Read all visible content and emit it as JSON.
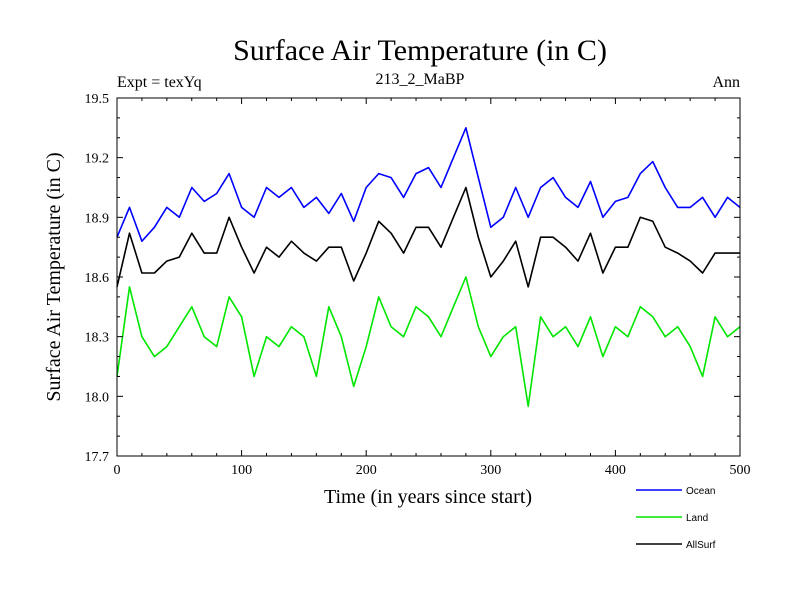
{
  "chart_data": {
    "type": "line",
    "title": "Surface Air Temperature (in C)",
    "subtitle": "213_2_MaBP",
    "left_label": "Expt = texYq",
    "right_label": "Ann",
    "xlabel": "Time (in years since start)",
    "ylabel": "Surface Air Temperature (in C)",
    "xlim": [
      0,
      500
    ],
    "ylim": [
      17.7,
      19.5
    ],
    "xticks": [
      0,
      100,
      200,
      300,
      400,
      500
    ],
    "yticks": [
      17.7,
      18.0,
      18.3,
      18.6,
      18.9,
      19.2,
      19.5
    ],
    "ytick_labels": [
      "17.7",
      "18.0",
      "18.3",
      "18.6",
      "18.9",
      "19.2",
      "19.5"
    ],
    "grid": false,
    "legend_position": "bottom-right, below plot",
    "x": [
      0,
      10,
      20,
      30,
      40,
      50,
      60,
      70,
      80,
      90,
      100,
      110,
      120,
      130,
      140,
      150,
      160,
      170,
      180,
      190,
      200,
      210,
      220,
      230,
      240,
      250,
      260,
      270,
      280,
      290,
      300,
      310,
      320,
      330,
      340,
      350,
      360,
      370,
      380,
      390,
      400,
      410,
      420,
      430,
      440,
      450,
      460,
      470,
      480,
      490,
      500
    ],
    "series": [
      {
        "name": "Ocean",
        "color": "#0000ff",
        "values": [
          18.8,
          18.95,
          18.78,
          18.85,
          18.95,
          18.9,
          19.05,
          18.98,
          19.02,
          19.12,
          18.95,
          18.9,
          19.05,
          19.0,
          19.05,
          18.95,
          19.0,
          18.92,
          19.02,
          18.88,
          19.05,
          19.12,
          19.1,
          19.0,
          19.12,
          19.15,
          19.05,
          19.2,
          19.35,
          19.1,
          18.85,
          18.9,
          19.05,
          18.9,
          19.05,
          19.1,
          19.0,
          18.95,
          19.08,
          18.9,
          18.98,
          19.0,
          19.12,
          19.18,
          19.05,
          18.95,
          18.95,
          19.0,
          18.9,
          19.0,
          18.95
        ]
      },
      {
        "name": "Land",
        "color": "#00e600",
        "values": [
          18.1,
          18.55,
          18.3,
          18.2,
          18.25,
          18.35,
          18.45,
          18.3,
          18.25,
          18.5,
          18.4,
          18.1,
          18.3,
          18.25,
          18.35,
          18.3,
          18.1,
          18.45,
          18.3,
          18.05,
          18.25,
          18.5,
          18.35,
          18.3,
          18.45,
          18.4,
          18.3,
          18.45,
          18.6,
          18.35,
          18.2,
          18.3,
          18.35,
          17.95,
          18.4,
          18.3,
          18.35,
          18.25,
          18.4,
          18.2,
          18.35,
          18.3,
          18.45,
          18.4,
          18.3,
          18.35,
          18.25,
          18.1,
          18.4,
          18.3,
          18.35
        ]
      },
      {
        "name": "AllSurf",
        "color": "#000000",
        "values": [
          18.55,
          18.82,
          18.62,
          18.62,
          18.68,
          18.7,
          18.82,
          18.72,
          18.72,
          18.9,
          18.75,
          18.62,
          18.75,
          18.7,
          18.78,
          18.72,
          18.68,
          18.75,
          18.75,
          18.58,
          18.72,
          18.88,
          18.82,
          18.72,
          18.85,
          18.85,
          18.75,
          18.9,
          19.05,
          18.8,
          18.6,
          18.68,
          18.78,
          18.55,
          18.8,
          18.8,
          18.75,
          18.68,
          18.82,
          18.62,
          18.75,
          18.75,
          18.9,
          18.88,
          18.75,
          18.72,
          18.68,
          18.62,
          18.72,
          18.72,
          18.72
        ]
      }
    ]
  }
}
